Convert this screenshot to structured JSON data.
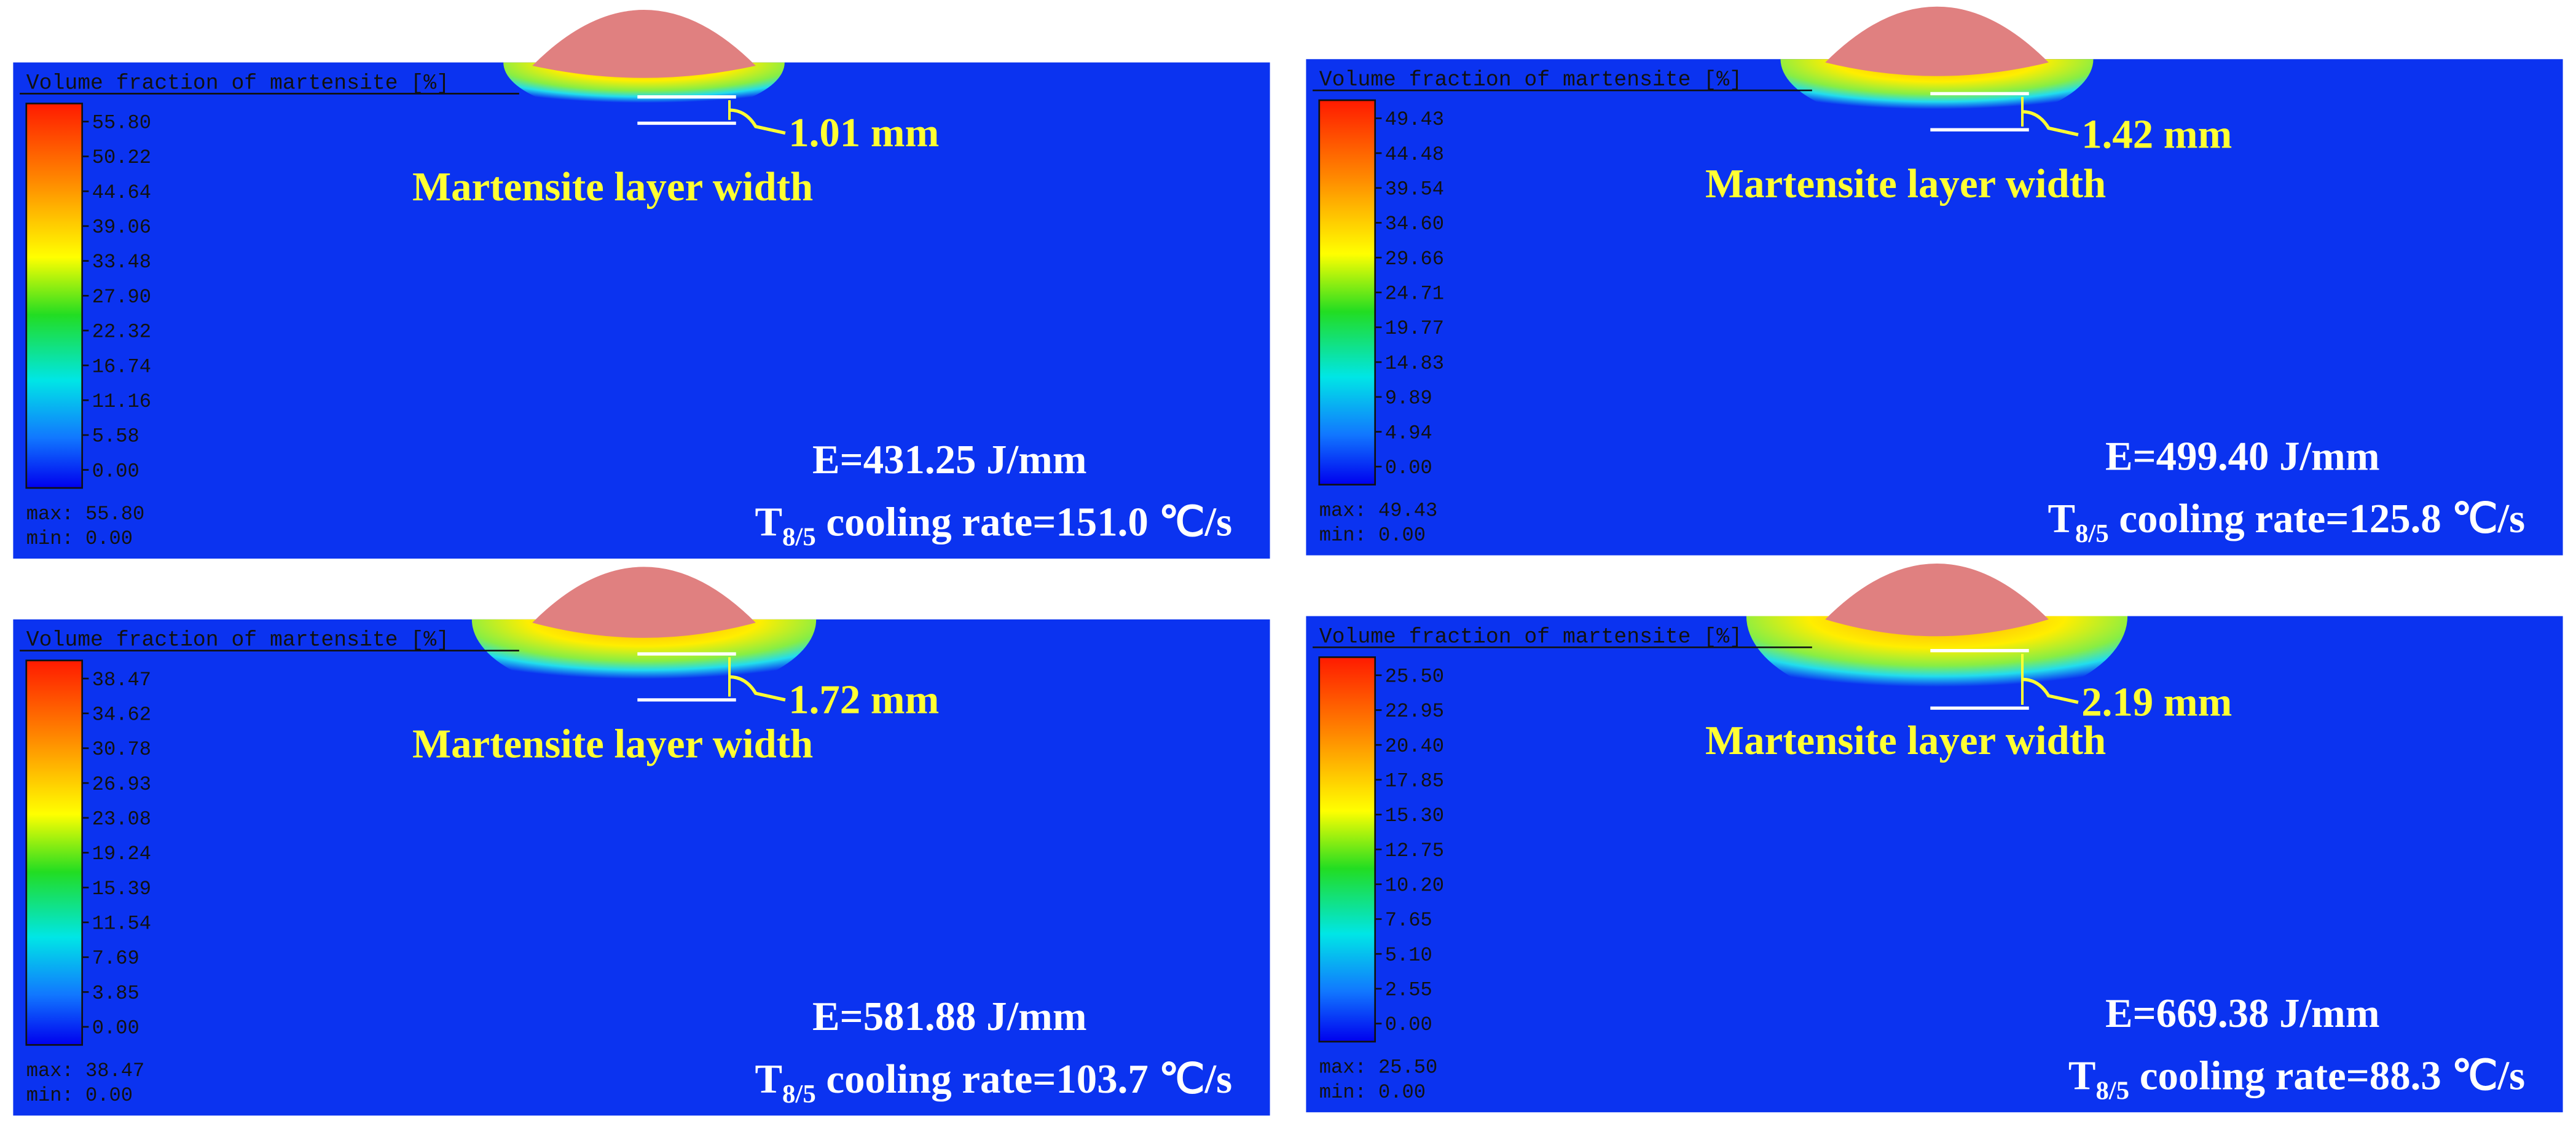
{
  "panels": [
    {
      "legend_title": "Volume fraction of martensite [%]",
      "colorbar_ticks": [
        "55.80",
        "50.22",
        "44.64",
        "39.06",
        "33.48",
        "27.90",
        "22.32",
        "16.74",
        "11.16",
        "5.58",
        "0.00"
      ],
      "max_label": "max: 55.80",
      "min_label": "min:  0.00",
      "width_label": "1.01 mm",
      "annotation": "Martensite layer width",
      "energy": "E=431.25 J/mm",
      "rate_prefix": "T",
      "rate_sub": "8/5",
      "rate_text": " cooling rate=151.0 ℃/s"
    },
    {
      "legend_title": "Volume fraction of martensite [%]",
      "colorbar_ticks": [
        "49.43",
        "44.48",
        "39.54",
        "34.60",
        "29.66",
        "24.71",
        "19.77",
        "14.83",
        "9.89",
        "4.94",
        "0.00"
      ],
      "max_label": "max: 49.43",
      "min_label": "min:  0.00",
      "width_label": "1.42 mm",
      "annotation": "Martensite layer width",
      "energy": "E=499.40 J/mm",
      "rate_prefix": "T",
      "rate_sub": "8/5",
      "rate_text": " cooling rate=125.8 ℃/s"
    },
    {
      "legend_title": "Volume fraction of martensite [%]",
      "colorbar_ticks": [
        "38.47",
        "34.62",
        "30.78",
        "26.93",
        "23.08",
        "19.24",
        "15.39",
        "11.54",
        "7.69",
        "3.85",
        "0.00"
      ],
      "max_label": "max: 38.47",
      "min_label": "min:  0.00",
      "width_label": "1.72 mm",
      "annotation": "Martensite layer width",
      "energy": "E=581.88 J/mm",
      "rate_prefix": "T",
      "rate_sub": "8/5",
      "rate_text": " cooling rate=103.7 ℃/s"
    },
    {
      "legend_title": "Volume fraction of martensite [%]",
      "colorbar_ticks": [
        "25.50",
        "22.95",
        "20.40",
        "17.85",
        "15.30",
        "12.75",
        "10.20",
        "7.65",
        "5.10",
        "2.55",
        "0.00"
      ],
      "max_label": "max: 25.50",
      "min_label": "min:  0.00",
      "width_label": "2.19 mm",
      "annotation": "Martensite layer width",
      "energy": "E=669.38 J/mm",
      "rate_prefix": "T",
      "rate_sub": "8/5",
      "rate_text": " cooling rate=88.3 ℃/s"
    }
  ]
}
